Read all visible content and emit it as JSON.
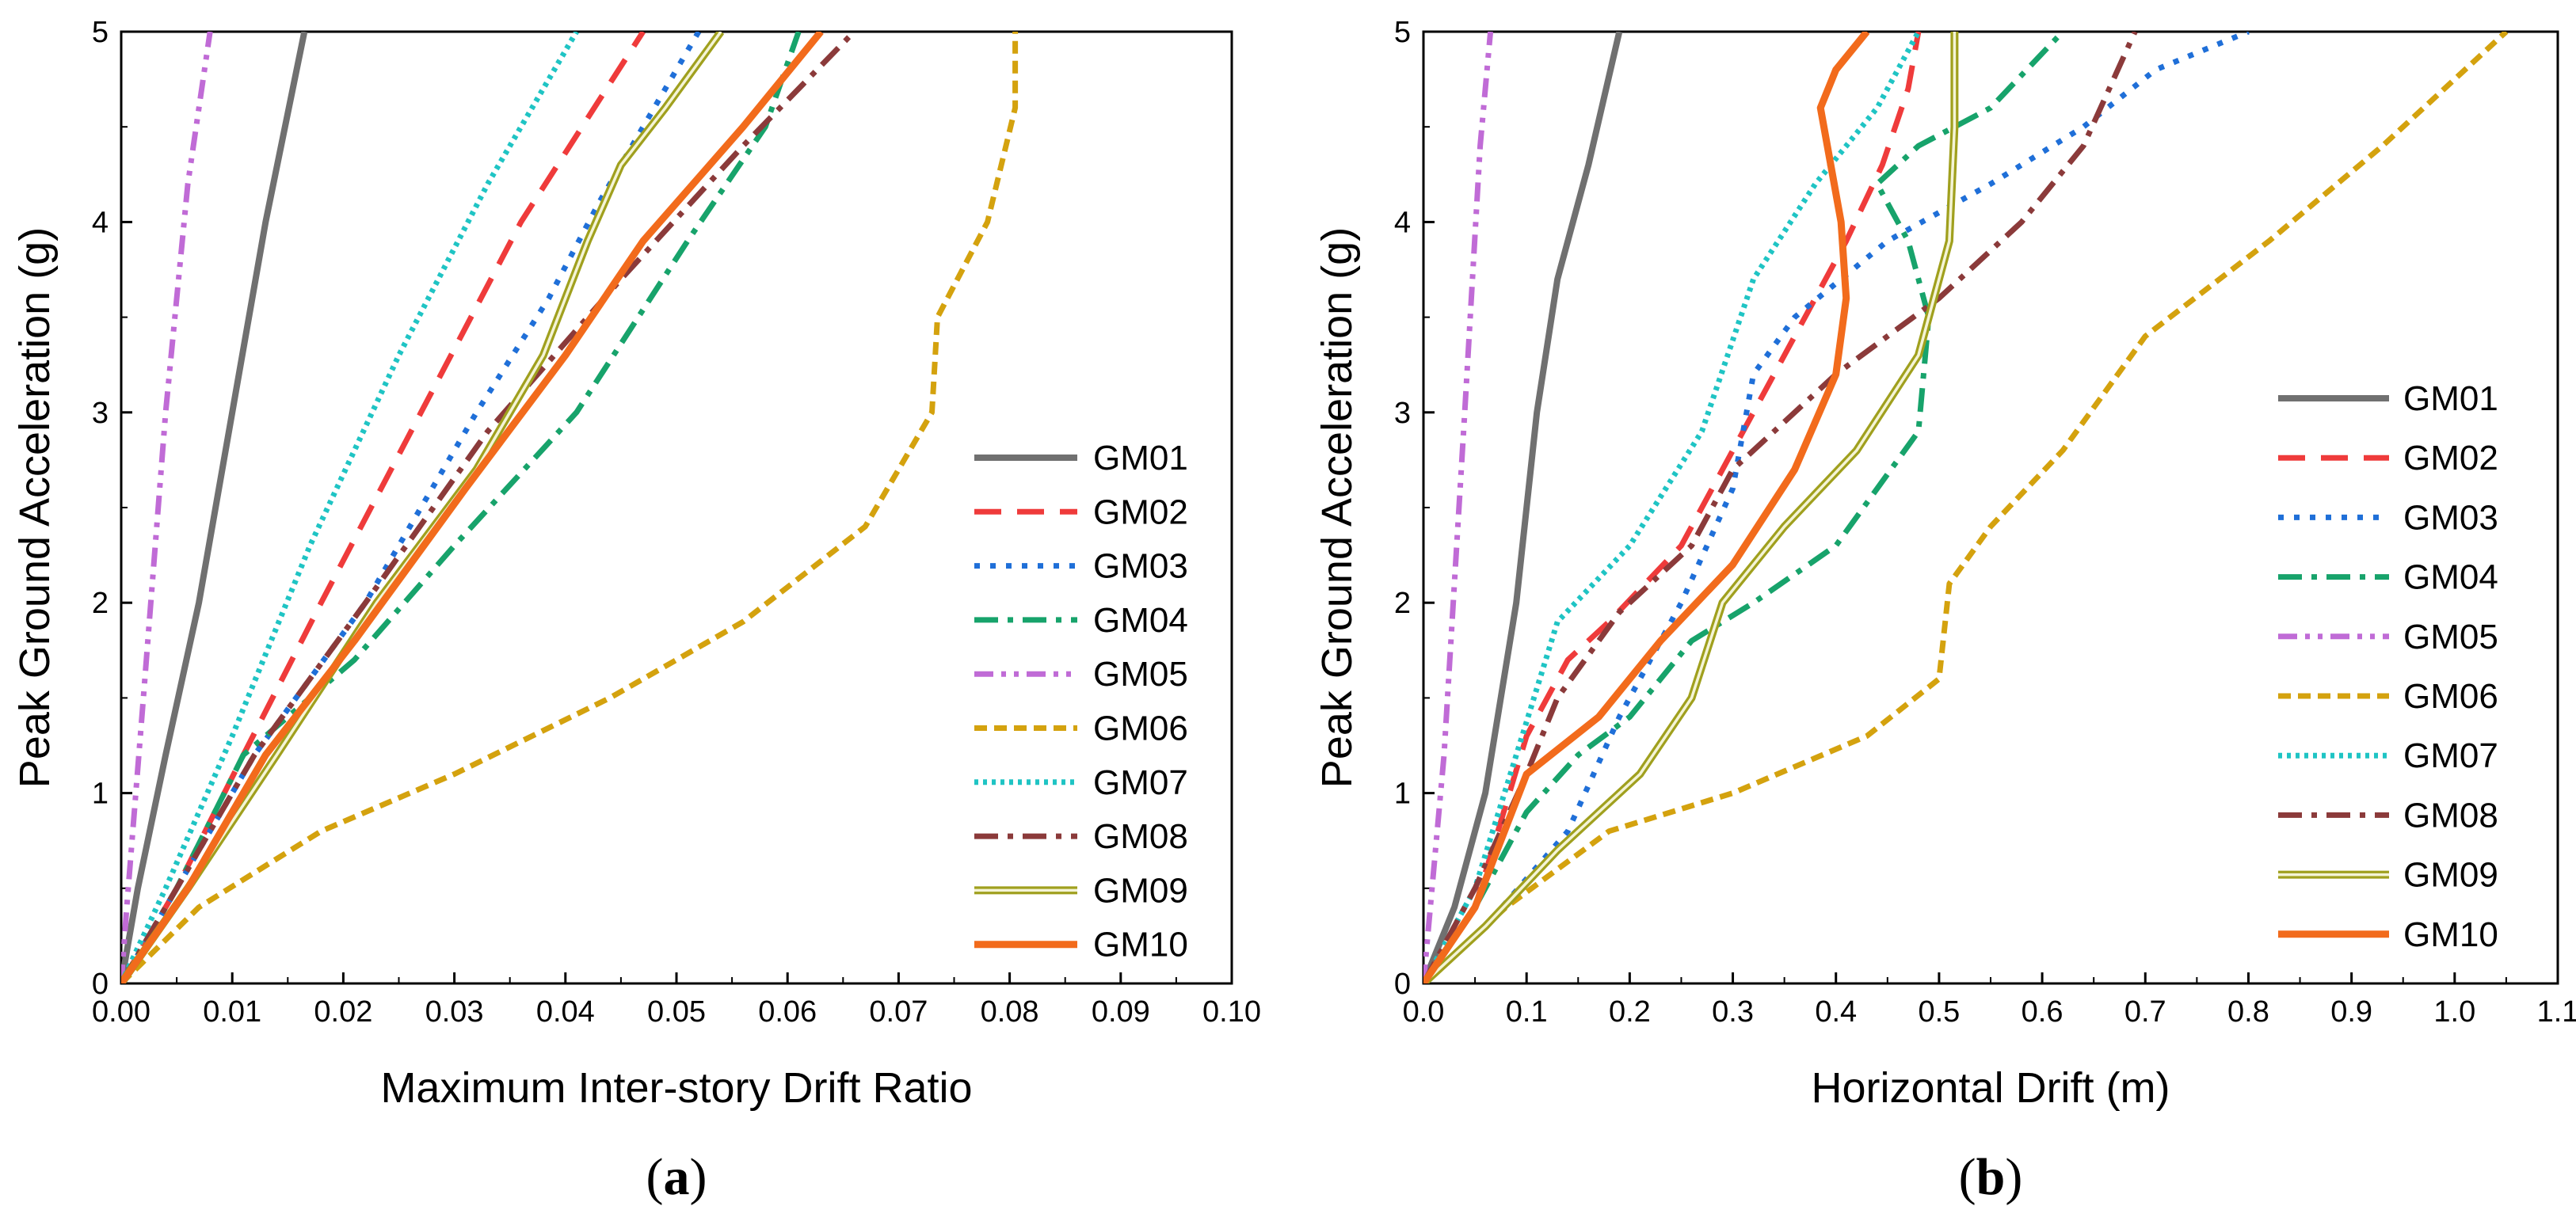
{
  "chart_data": [
    {
      "type": "line",
      "panel": "(a)",
      "xlabel": "Maximum Inter-story Drift Ratio",
      "ylabel": "Peak Ground Acceleration (g)",
      "xlim": [
        0,
        0.1
      ],
      "ylim": [
        0,
        5
      ],
      "xticks": [
        "0.00",
        "0.01",
        "0.02",
        "0.03",
        "0.04",
        "0.05",
        "0.06",
        "0.07",
        "0.08",
        "0.09",
        "0.10"
      ],
      "yticks": [
        "0",
        "1",
        "2",
        "3",
        "4",
        "5"
      ],
      "grid": false,
      "legend_position": "bottom-right",
      "series": [
        {
          "name": "GM01",
          "color": "#707070",
          "dash": "solid",
          "points": [
            [
              0,
              0
            ],
            [
              0.0015,
              0.5
            ],
            [
              0.004,
              1.2
            ],
            [
              0.007,
              2
            ],
            [
              0.01,
              3
            ],
            [
              0.013,
              4
            ],
            [
              0.0165,
              5
            ]
          ]
        },
        {
          "name": "GM02",
          "color": "#ef3b3b",
          "dash": "long-dash",
          "points": [
            [
              0,
              0
            ],
            [
              0.005,
              0.5
            ],
            [
              0.011,
              1.2
            ],
            [
              0.018,
              2
            ],
            [
              0.027,
              3
            ],
            [
              0.036,
              4
            ],
            [
              0.047,
              5
            ]
          ]
        },
        {
          "name": "GM03",
          "color": "#1f6fd8",
          "dash": "dot",
          "points": [
            [
              0,
              0
            ],
            [
              0.005,
              0.5
            ],
            [
              0.012,
              1.2
            ],
            [
              0.022,
              2
            ],
            [
              0.032,
              3
            ],
            [
              0.0385,
              3.6
            ],
            [
              0.043,
              4.1
            ],
            [
              0.047,
              4.5
            ],
            [
              0.052,
              5
            ]
          ]
        },
        {
          "name": "GM04",
          "color": "#17a36b",
          "dash": "dash-dot",
          "points": [
            [
              0,
              0
            ],
            [
              0.005,
              0.5
            ],
            [
              0.011,
              1.2
            ],
            [
              0.021,
              1.7
            ],
            [
              0.03,
              2.3
            ],
            [
              0.041,
              3
            ],
            [
              0.051,
              3.9
            ],
            [
              0.058,
              4.5
            ],
            [
              0.061,
              5
            ]
          ]
        },
        {
          "name": "GM05",
          "color": "#c06bd6",
          "dash": "dash-dot-dot",
          "points": [
            [
              0,
              0
            ],
            [
              0.0005,
              0.4
            ],
            [
              0.002,
              1.5
            ],
            [
              0.004,
              3
            ],
            [
              0.006,
              4.2
            ],
            [
              0.008,
              5
            ]
          ]
        },
        {
          "name": "GM06",
          "color": "#d4a20e",
          "dash": "short-dash",
          "points": [
            [
              0,
              0
            ],
            [
              0.007,
              0.4
            ],
            [
              0.018,
              0.8
            ],
            [
              0.03,
              1.1
            ],
            [
              0.044,
              1.5
            ],
            [
              0.056,
              1.9
            ],
            [
              0.067,
              2.4
            ],
            [
              0.073,
              3
            ],
            [
              0.0735,
              3.5
            ],
            [
              0.078,
              4
            ],
            [
              0.0805,
              4.6
            ],
            [
              0.0805,
              5
            ]
          ]
        },
        {
          "name": "GM07",
          "color": "#1fc4c4",
          "dash": "fine-dot",
          "points": [
            [
              0,
              0
            ],
            [
              0.004,
              0.5
            ],
            [
              0.01,
              1.3
            ],
            [
              0.017,
              2.3
            ],
            [
              0.025,
              3.3
            ],
            [
              0.033,
              4.2
            ],
            [
              0.041,
              5
            ]
          ]
        },
        {
          "name": "GM08",
          "color": "#8b3a3a",
          "dash": "dash-dot",
          "points": [
            [
              0,
              0
            ],
            [
              0.005,
              0.5
            ],
            [
              0.012,
              1.2
            ],
            [
              0.022,
              2
            ],
            [
              0.033,
              2.9
            ],
            [
              0.045,
              3.7
            ],
            [
              0.056,
              4.4
            ],
            [
              0.066,
              5
            ]
          ]
        },
        {
          "name": "GM09",
          "color": "#a0a01e",
          "dash": "double",
          "points": [
            [
              0,
              0
            ],
            [
              0.006,
              0.5
            ],
            [
              0.014,
              1.2
            ],
            [
              0.023,
              2
            ],
            [
              0.032,
              2.7
            ],
            [
              0.038,
              3.3
            ],
            [
              0.042,
              3.9
            ],
            [
              0.045,
              4.3
            ],
            [
              0.049,
              4.6
            ],
            [
              0.054,
              5
            ]
          ]
        },
        {
          "name": "GM10",
          "color": "#f26b1c",
          "dash": "solid-thick",
          "points": [
            [
              0,
              0
            ],
            [
              0.006,
              0.5
            ],
            [
              0.013,
              1.2
            ],
            [
              0.021,
              1.8
            ],
            [
              0.031,
              2.6
            ],
            [
              0.04,
              3.3
            ],
            [
              0.047,
              3.9
            ],
            [
              0.056,
              4.5
            ],
            [
              0.063,
              5
            ]
          ]
        }
      ]
    },
    {
      "type": "line",
      "panel": "(b)",
      "xlabel": "Horizontal Drift (m)",
      "ylabel": "Peak Ground Acceleration (g)",
      "xlim": [
        0,
        1.1
      ],
      "ylim": [
        0,
        5
      ],
      "xticks": [
        "0.0",
        "0.1",
        "0.2",
        "0.3",
        "0.4",
        "0.5",
        "0.6",
        "0.7",
        "0.8",
        "0.9",
        "1.0",
        "1.1"
      ],
      "yticks": [
        "0",
        "1",
        "2",
        "3",
        "4",
        "5"
      ],
      "grid": false,
      "legend_position": "right",
      "series": [
        {
          "name": "GM01",
          "color": "#707070",
          "dash": "solid",
          "points": [
            [
              0,
              0
            ],
            [
              0.03,
              0.4
            ],
            [
              0.06,
              1
            ],
            [
              0.09,
              2
            ],
            [
              0.11,
              3
            ],
            [
              0.13,
              3.7
            ],
            [
              0.16,
              4.3
            ],
            [
              0.19,
              5
            ]
          ]
        },
        {
          "name": "GM02",
          "color": "#ef3b3b",
          "dash": "long-dash",
          "points": [
            [
              0,
              0
            ],
            [
              0.05,
              0.4
            ],
            [
              0.1,
              1.3
            ],
            [
              0.14,
              1.7
            ],
            [
              0.18,
              1.9
            ],
            [
              0.25,
              2.3
            ],
            [
              0.3,
              2.8
            ],
            [
              0.36,
              3.4
            ],
            [
              0.41,
              3.9
            ],
            [
              0.445,
              4.3
            ],
            [
              0.47,
              4.7
            ],
            [
              0.48,
              5
            ]
          ]
        },
        {
          "name": "GM03",
          "color": "#1f6fd8",
          "dash": "dot",
          "points": [
            [
              0,
              0
            ],
            [
              0.06,
              0.3
            ],
            [
              0.14,
              0.8
            ],
            [
              0.19,
              1.4
            ],
            [
              0.25,
              2
            ],
            [
              0.3,
              2.6
            ],
            [
              0.32,
              3.2
            ],
            [
              0.36,
              3.5
            ],
            [
              0.45,
              3.9
            ],
            [
              0.55,
              4.2
            ],
            [
              0.64,
              4.5
            ],
            [
              0.71,
              4.8
            ],
            [
              0.8,
              5
            ]
          ]
        },
        {
          "name": "GM04",
          "color": "#17a36b",
          "dash": "dash-dot",
          "points": [
            [
              0,
              0
            ],
            [
              0.05,
              0.4
            ],
            [
              0.1,
              0.9
            ],
            [
              0.15,
              1.2
            ],
            [
              0.2,
              1.4
            ],
            [
              0.26,
              1.8
            ],
            [
              0.32,
              2
            ],
            [
              0.4,
              2.3
            ],
            [
              0.48,
              2.9
            ],
            [
              0.49,
              3.5
            ],
            [
              0.47,
              3.9
            ],
            [
              0.44,
              4.2
            ],
            [
              0.48,
              4.4
            ],
            [
              0.55,
              4.6
            ],
            [
              0.62,
              5
            ]
          ]
        },
        {
          "name": "GM05",
          "color": "#c06bd6",
          "dash": "dash-dot-dot",
          "points": [
            [
              0,
              0
            ],
            [
              0.005,
              0.3
            ],
            [
              0.02,
              1.2
            ],
            [
              0.04,
              3
            ],
            [
              0.055,
              4.4
            ],
            [
              0.065,
              5
            ]
          ]
        },
        {
          "name": "GM06",
          "color": "#d4a20e",
          "dash": "short-dash",
          "points": [
            [
              0,
              0
            ],
            [
              0.08,
              0.4
            ],
            [
              0.18,
              0.8
            ],
            [
              0.3,
              1
            ],
            [
              0.43,
              1.3
            ],
            [
              0.5,
              1.6
            ],
            [
              0.51,
              2.1
            ],
            [
              0.55,
              2.4
            ],
            [
              0.62,
              2.8
            ],
            [
              0.7,
              3.4
            ],
            [
              0.82,
              3.9
            ],
            [
              0.93,
              4.4
            ],
            [
              1.05,
              5
            ]
          ]
        },
        {
          "name": "GM07",
          "color": "#1fc4c4",
          "dash": "fine-dot",
          "points": [
            [
              0,
              0
            ],
            [
              0.05,
              0.5
            ],
            [
              0.09,
              1.2
            ],
            [
              0.13,
              1.9
            ],
            [
              0.2,
              2.3
            ],
            [
              0.27,
              2.9
            ],
            [
              0.32,
              3.7
            ],
            [
              0.38,
              4.2
            ],
            [
              0.44,
              4.6
            ],
            [
              0.48,
              5
            ]
          ]
        },
        {
          "name": "GM08",
          "color": "#8b3a3a",
          "dash": "dash-dot",
          "points": [
            [
              0,
              0
            ],
            [
              0.05,
              0.5
            ],
            [
              0.1,
              1.1
            ],
            [
              0.13,
              1.5
            ],
            [
              0.19,
              1.95
            ],
            [
              0.26,
              2.3
            ],
            [
              0.3,
              2.7
            ],
            [
              0.4,
              3.2
            ],
            [
              0.5,
              3.6
            ],
            [
              0.58,
              4
            ],
            [
              0.64,
              4.4
            ],
            [
              0.69,
              5
            ]
          ]
        },
        {
          "name": "GM09",
          "color": "#a0a01e",
          "dash": "double",
          "points": [
            [
              0,
              0
            ],
            [
              0.06,
              0.3
            ],
            [
              0.13,
              0.7
            ],
            [
              0.21,
              1.1
            ],
            [
              0.26,
              1.5
            ],
            [
              0.29,
              2
            ],
            [
              0.35,
              2.4
            ],
            [
              0.42,
              2.8
            ],
            [
              0.48,
              3.3
            ],
            [
              0.51,
              3.9
            ],
            [
              0.515,
              4.5
            ],
            [
              0.515,
              5
            ]
          ]
        },
        {
          "name": "GM10",
          "color": "#f26b1c",
          "dash": "solid-thick",
          "points": [
            [
              0,
              0
            ],
            [
              0.05,
              0.4
            ],
            [
              0.1,
              1.1
            ],
            [
              0.17,
              1.4
            ],
            [
              0.23,
              1.8
            ],
            [
              0.3,
              2.2
            ],
            [
              0.36,
              2.7
            ],
            [
              0.4,
              3.2
            ],
            [
              0.41,
              3.6
            ],
            [
              0.405,
              4
            ],
            [
              0.395,
              4.3
            ],
            [
              0.385,
              4.6
            ],
            [
              0.4,
              4.8
            ],
            [
              0.43,
              5
            ]
          ]
        }
      ]
    }
  ]
}
